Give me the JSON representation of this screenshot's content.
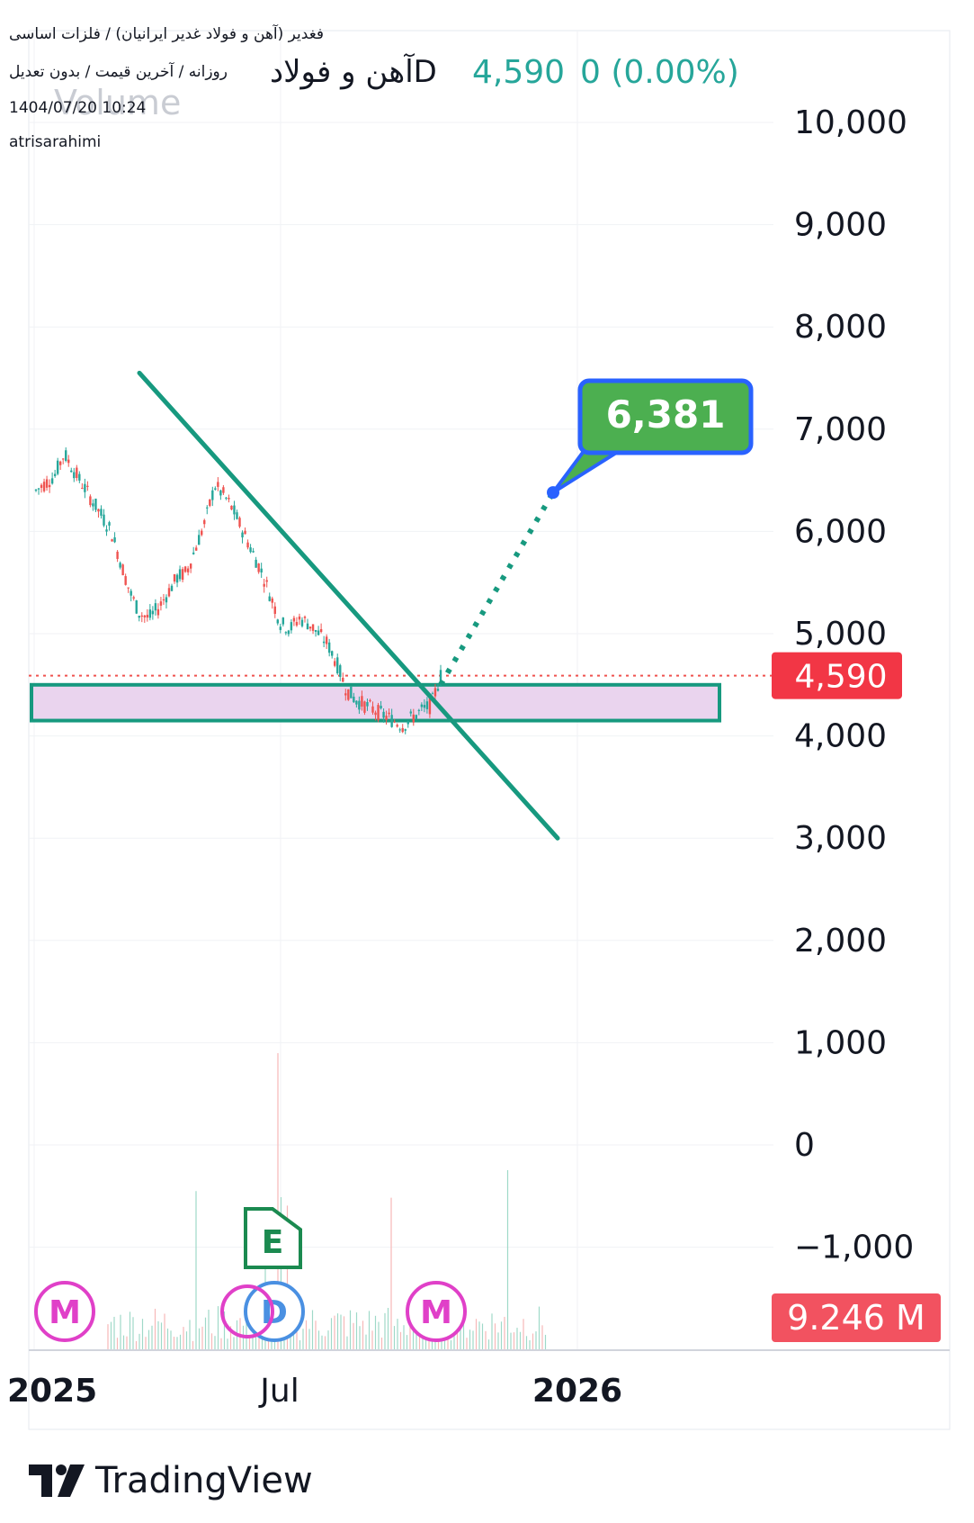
{
  "header": {
    "symbol_full": "فغدیر (آهن و فولاد غدیر ایرانیان) / فلزات اساسی",
    "interval_line": "روزانه / آخرین قیمت / بدون تعدیل",
    "datetime": "1404/07/20 10:24",
    "author": "atrisarahimi",
    "chart_title": "آهن و فولادD",
    "last_price": "4,590",
    "change": "0 (0.00%)",
    "overlay_text": "Volume"
  },
  "brand": {
    "name": "TradingView"
  },
  "colors": {
    "up": "#26a69a",
    "down": "#ef5350",
    "trendline": "#17997f",
    "zone_fill": "#ead4ee",
    "zone_stroke": "#17997f",
    "callout_fill": "#4caf50",
    "callout_stroke": "#2962ff",
    "price_label": "#f23645",
    "event_m": "#e040c8",
    "event_d": "#4a90e2",
    "event_e": "#1b8a50"
  },
  "chart_data": {
    "type": "candlestick",
    "y_ticks": [
      10000,
      9000,
      8000,
      7000,
      6000,
      5000,
      4000,
      3000,
      2000,
      1000,
      0,
      -1000
    ],
    "y_tick_labels": [
      "10,000",
      "9,000",
      "8,000",
      "7,000",
      "6,000",
      "5,000",
      "4,000",
      "3,000",
      "2,000",
      "1,000",
      "0",
      "−1,000"
    ],
    "x_tick_labels": [
      "2025",
      "Jul",
      "2026"
    ],
    "last_price": 4590,
    "last_price_label": "4,590",
    "volume_label": "9.246 M",
    "target_price": 6381,
    "target_label": "6,381",
    "support_zone": {
      "low": 4150,
      "high": 4500
    },
    "trendline": {
      "from": 7550,
      "to": 3000
    },
    "price_path": [
      6400,
      6470,
      6550,
      6760,
      6600,
      6450,
      6300,
      6150,
      6000,
      5700,
      5400,
      5200,
      5150,
      5250,
      5400,
      5550,
      5600,
      5850,
      6100,
      6450,
      6350,
      6200,
      6000,
      5800,
      5600,
      5350,
      5100,
      5050,
      5150,
      5100,
      5000,
      4900,
      4700,
      4450,
      4350,
      4300,
      4250,
      4200,
      4150,
      4100,
      4180,
      4250,
      4300,
      4590
    ],
    "events": [
      "M",
      "E",
      "D",
      "M"
    ]
  }
}
